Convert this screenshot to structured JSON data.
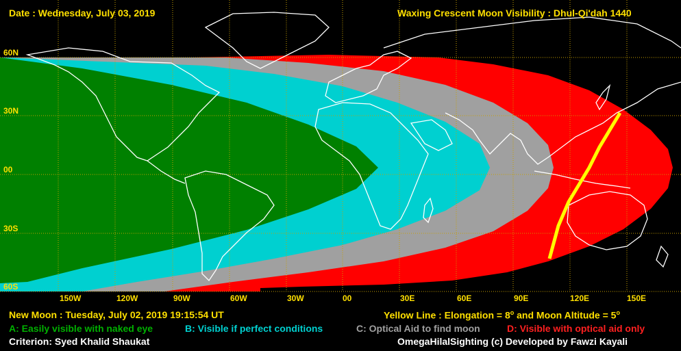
{
  "header": {
    "date": "Date : Wednesday, July 03, 2019",
    "title": "Waxing Crescent Moon Visibility : Dhul-Qi'dah 1440"
  },
  "lat_labels": [
    "60N",
    "30N",
    "00",
    "30S",
    "60S"
  ],
  "lon_labels": [
    "150W",
    "120W",
    "90W",
    "60W",
    "30W",
    "00",
    "30E",
    "60E",
    "90E",
    "120E",
    "150E"
  ],
  "footer": {
    "new_moon": "New Moon : Tuesday, July 02, 2019  19:15:54  UT",
    "yellow_prefix": "Yellow Line : Elongation = 8",
    "yellow_mid": " and Moon Altitude = 5",
    "legend_a": "A: Easily visible with naked eye",
    "legend_b": "B: Visible if perfect conditions",
    "legend_c": "C: Optical Aid to find moon",
    "legend_d": "D: Visible with optical aid only",
    "criterion": "Criterion: Syed Khalid Shaukat",
    "credit": "OmegaHilalSighting  (c)  Developed by Fawzi Kayali"
  },
  "colors": {
    "label": "#ffe000",
    "zone_a": "#008000",
    "zone_b": "#00d0d0",
    "zone_c": "#a0a0a0",
    "zone_d": "#ff0000",
    "yellow_line": "#ffff00",
    "coast": "#ffffff"
  }
}
